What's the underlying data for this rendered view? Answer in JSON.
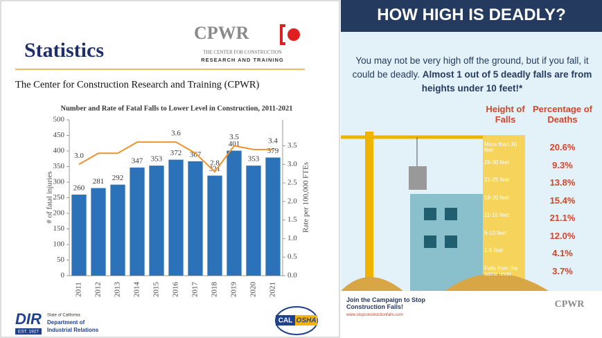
{
  "slide": {
    "title": "Statistics",
    "logo_name": "CPWR",
    "logo_line1": "THE CENTER FOR CONSTRUCTION",
    "logo_line2": "RESEARCH AND TRAINING",
    "subtitle": "The Center for Construction Research and Training (CPWR)",
    "dir_logo": "DIR",
    "dir_line1": "State of California",
    "dir_line2": "Department of",
    "dir_line3": "Industrial Relations",
    "dir_est": "EST. 1927",
    "calosha_1": "CAL",
    "calosha_2": "OSHA"
  },
  "chart_data": {
    "type": "bar",
    "title": "Number and Rate of Fatal Falls to Lower Level in Construction, 2011-2021",
    "ylabel": "# of fatal injuries",
    "y2label": "Rate per 100,000 FTEs",
    "categories": [
      "2011",
      "2012",
      "2013",
      "2014",
      "2015",
      "2016",
      "2017",
      "2018",
      "2019",
      "2020",
      "2021"
    ],
    "series": [
      {
        "type": "bar",
        "color": "#2b72b8",
        "values": [
          260,
          281,
          292,
          347,
          353,
          372,
          367,
          321,
          401,
          353,
          379
        ]
      },
      {
        "type": "line",
        "axis": "y2",
        "color": "#f0922b",
        "values": [
          3.0,
          3.3,
          3.3,
          3.6,
          3.6,
          3.6,
          3.3,
          2.8,
          3.5,
          3.4,
          3.4
        ],
        "value_labels": [
          "3.0",
          null,
          null,
          null,
          null,
          "3.6",
          null,
          "2.8",
          "3.5",
          null,
          "3.4"
        ]
      }
    ],
    "ylim": [
      0,
      500
    ],
    "yticks": [
      0,
      50,
      100,
      150,
      200,
      250,
      300,
      350,
      400,
      450,
      500
    ],
    "y2lim": [
      0,
      4.2
    ],
    "y2ticks": [
      {
        "value": 0,
        "label": "0.0"
      },
      0.5,
      {
        "value": 1,
        "label": "1.0"
      },
      1.5,
      {
        "value": 2,
        "label": "2.0"
      },
      2.5,
      {
        "value": 3,
        "label": "3.0"
      },
      3.5
    ]
  },
  "infographic": {
    "title": "HOW HIGH IS DEADLY?",
    "intro": "You may not be very high off the ground, but if you fall, it could be deadly.",
    "intro_bold": "Almost 1 out of 5 deadly falls are from heights under 10 feet!*",
    "header_height": "Height of Falls",
    "header_pct": "Percentage of Deaths",
    "rows": [
      [
        "More than 30 feet",
        "20.6%"
      ],
      [
        "26-30 feet",
        "9.3%"
      ],
      [
        "21-25 feet",
        "13.8%"
      ],
      [
        "16-20 feet",
        "15.4%"
      ],
      [
        "11-15 feet",
        "21.1%"
      ],
      [
        "6-10 feet",
        "12.0%"
      ],
      [
        "1-5 feet",
        "4.1%"
      ],
      [
        "Falls from the same level",
        "3.7%"
      ]
    ],
    "campaign": "Join the Campaign to Stop Construction Falls!",
    "url": "www.stopconstructionfalls.com",
    "footer_logo": "CPWR"
  }
}
